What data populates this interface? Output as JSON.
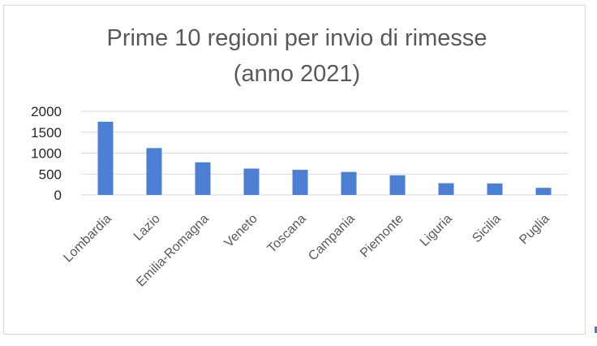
{
  "chart_data": {
    "type": "bar",
    "title_lines": [
      "Prime 10 regioni per invio di rimesse",
      "(anno 2021)"
    ],
    "categories": [
      "Lombardia",
      "Lazio",
      "Emilia-Romagna",
      "Veneto",
      "Toscana",
      "Campania",
      "Piemonte",
      "Liguria",
      "Sicilia",
      "Puglia"
    ],
    "values": [
      1750,
      1120,
      780,
      630,
      600,
      550,
      470,
      280,
      275,
      170
    ],
    "ylim": [
      0,
      2000
    ],
    "yticks": [
      0,
      500,
      1000,
      1500,
      2000
    ],
    "grid": true,
    "legend": "none",
    "bar_color": "#4a7fd4",
    "xlabel": "",
    "ylabel": ""
  }
}
